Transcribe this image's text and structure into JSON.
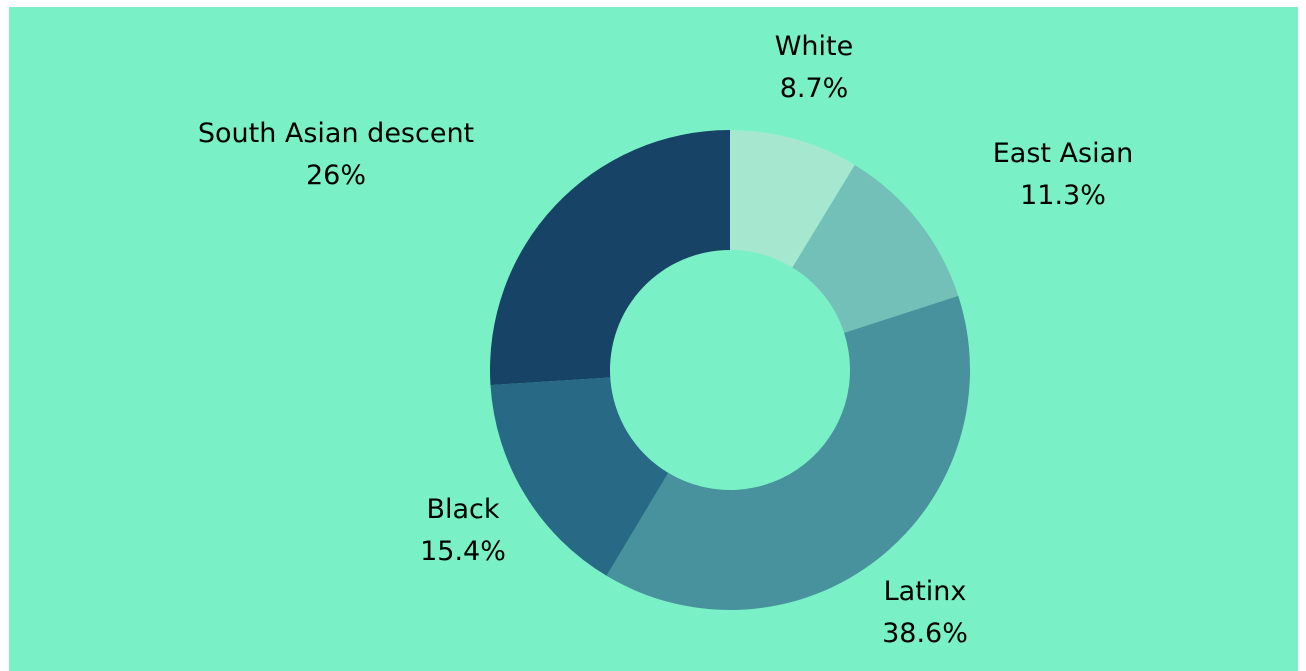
{
  "chart_data": {
    "type": "pie",
    "donut": true,
    "title": "",
    "slices": [
      {
        "label": "White",
        "value": 8.7,
        "display": "8.7%",
        "color": "#a6e8cf"
      },
      {
        "label": "East Asian",
        "value": 11.3,
        "display": "11.3%",
        "color": "#72c0b8"
      },
      {
        "label": "Latinx",
        "value": 38.6,
        "display": "38.6%",
        "color": "#47929d"
      },
      {
        "label": "Black",
        "value": 15.4,
        "display": "15.4%",
        "color": "#286985"
      },
      {
        "label": "South Asian descent",
        "value": 26,
        "display": "26%",
        "color": "#174466"
      }
    ],
    "background": "#7af0c6",
    "legend": "none"
  }
}
